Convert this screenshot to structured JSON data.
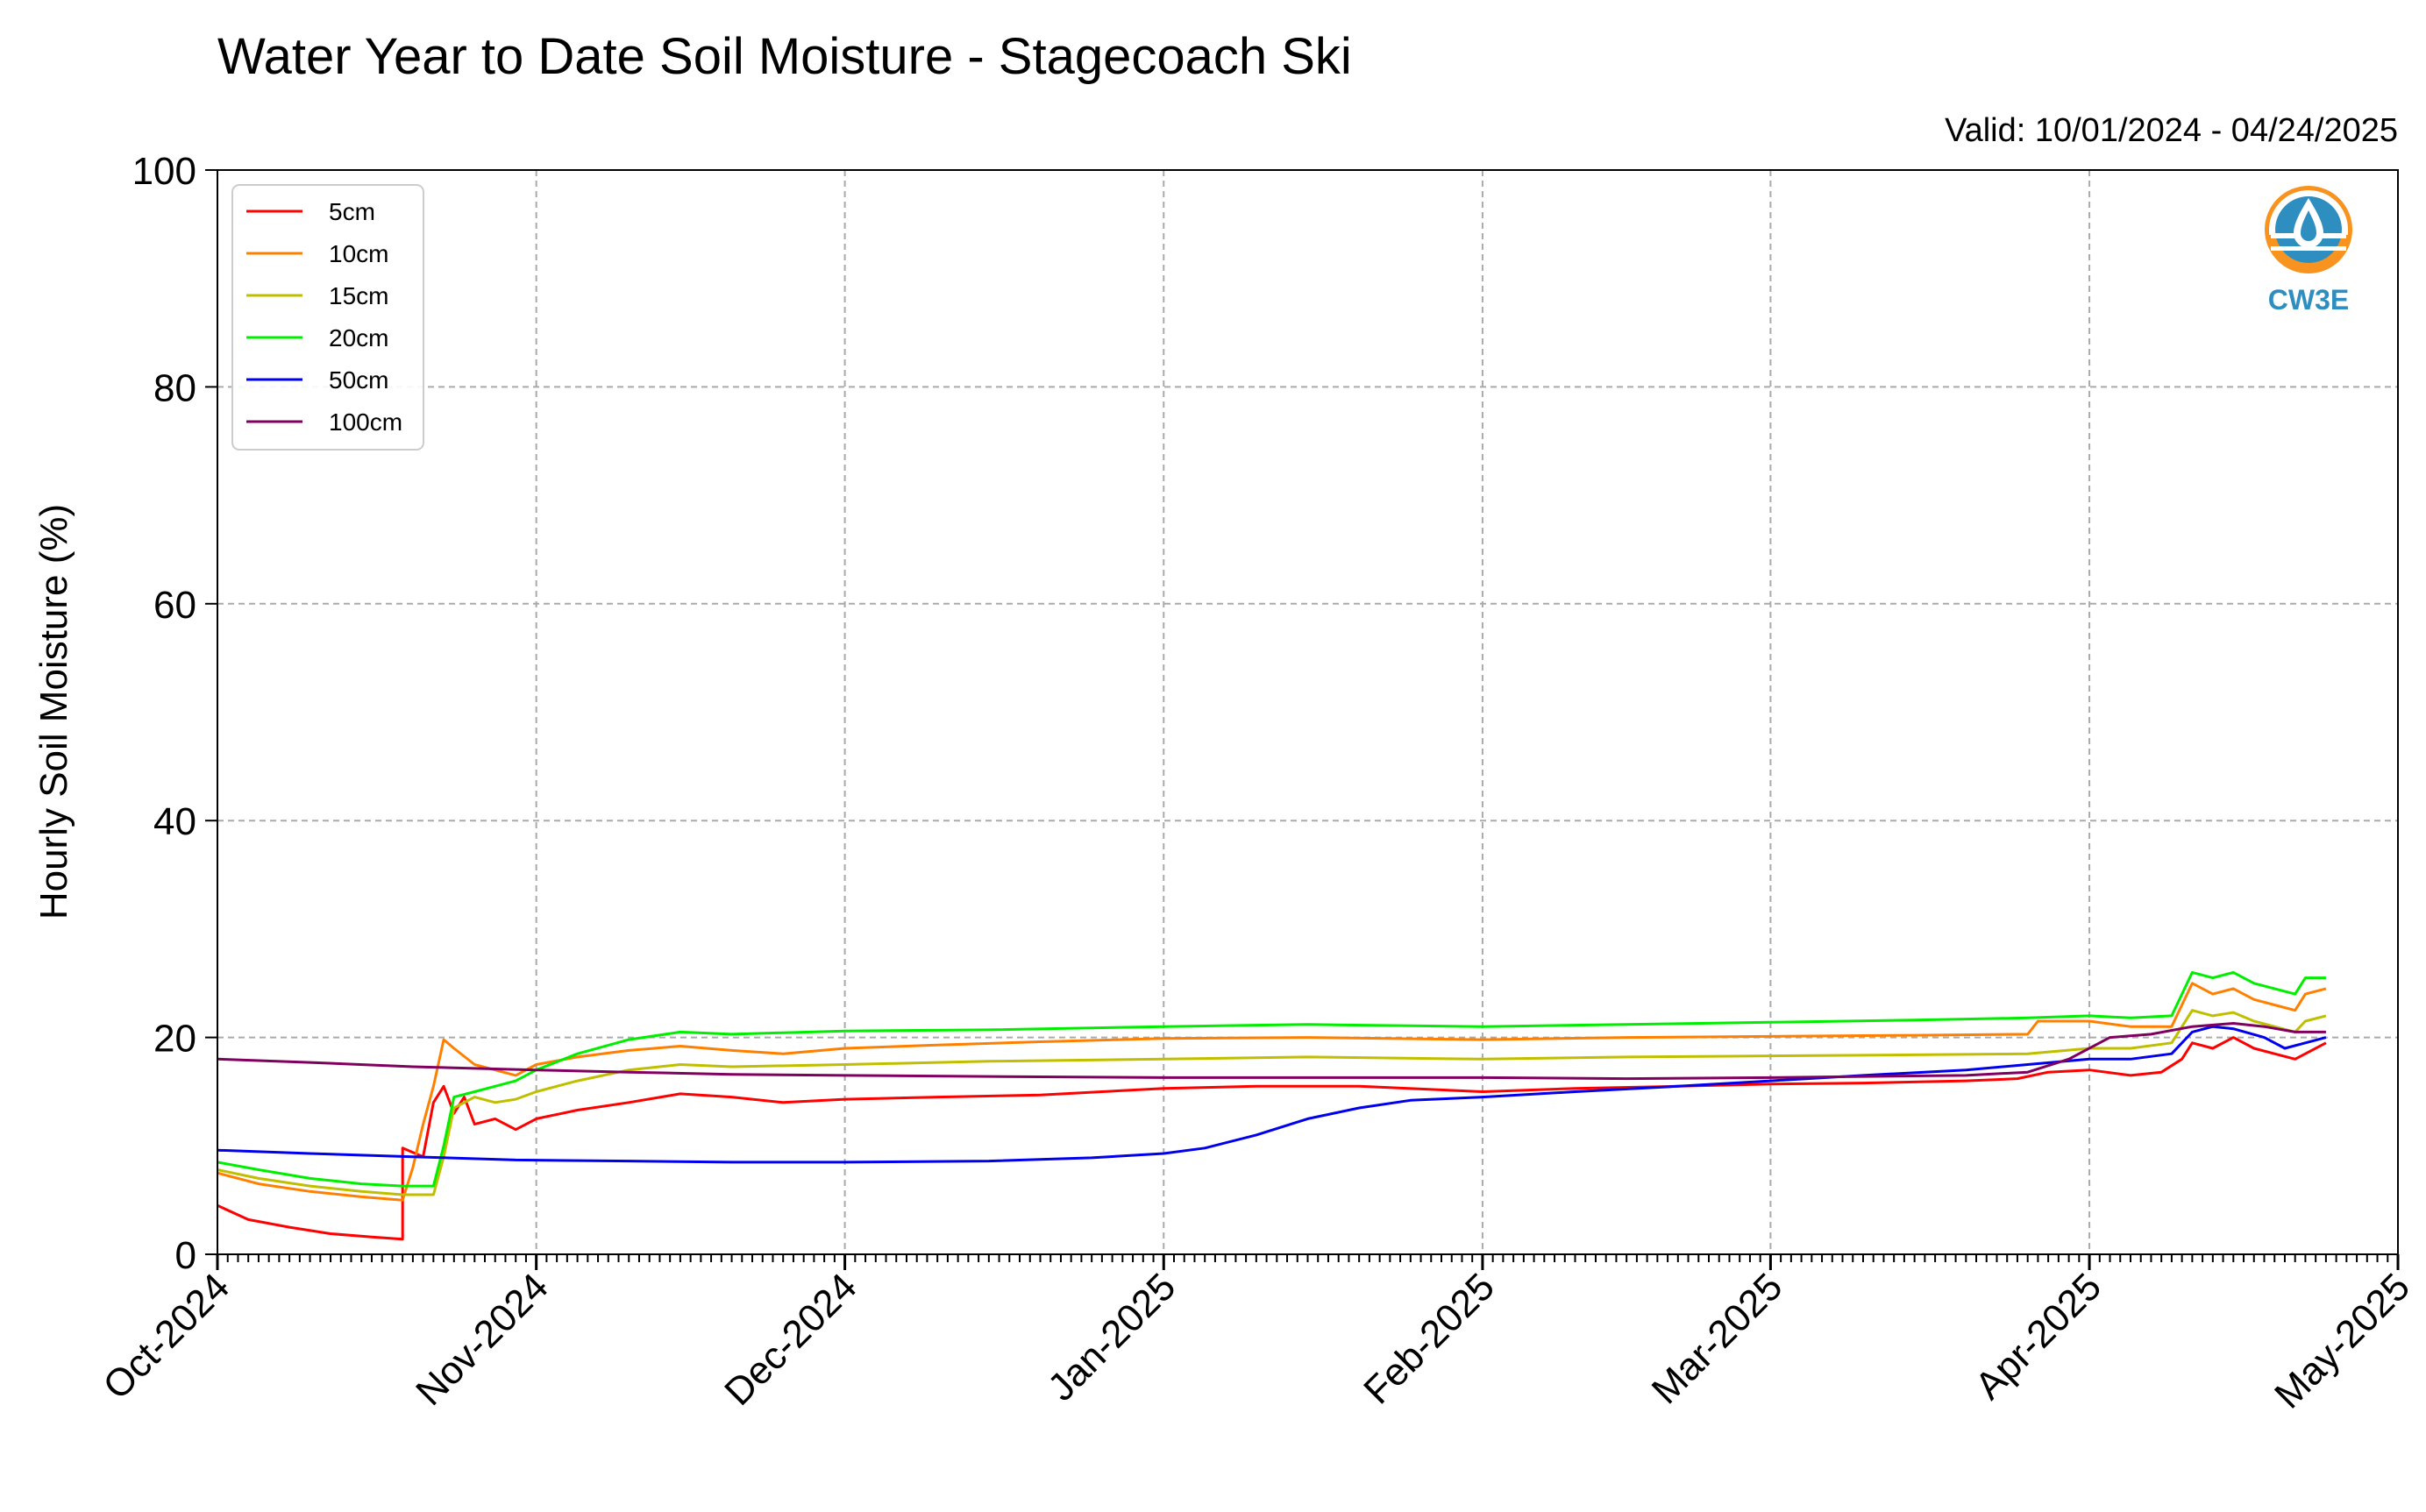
{
  "chart_data": {
    "type": "line",
    "title": "Water Year to Date Soil Moisture - Stagecoach Ski",
    "subtitle": "Valid: 10/01/2024 - 04/24/2025",
    "xlabel": "",
    "ylabel": "Hourly Soil Moisture (%)",
    "xlim": [
      "2024-10-01",
      "2025-05-01"
    ],
    "ylim": [
      0,
      100
    ],
    "y_ticks": [
      0,
      20,
      40,
      60,
      80,
      100
    ],
    "x_ticks": [
      {
        "date": "2024-10-01",
        "label": "Oct-2024"
      },
      {
        "date": "2024-11-01",
        "label": "Nov-2024"
      },
      {
        "date": "2024-12-01",
        "label": "Dec-2024"
      },
      {
        "date": "2025-01-01",
        "label": "Jan-2025"
      },
      {
        "date": "2025-02-01",
        "label": "Feb-2025"
      },
      {
        "date": "2025-03-01",
        "label": "Mar-2025"
      },
      {
        "date": "2025-04-01",
        "label": "Apr-2025"
      },
      {
        "date": "2025-05-01",
        "label": "May-2025"
      }
    ],
    "grid": true,
    "legend_position": "top-left",
    "series": [
      {
        "name": "5cm",
        "color": "#ff0000",
        "points": [
          [
            "2024-10-01",
            4.5
          ],
          [
            "2024-10-04",
            3.2
          ],
          [
            "2024-10-08",
            2.5
          ],
          [
            "2024-10-12",
            1.9
          ],
          [
            "2024-10-16",
            1.6
          ],
          [
            "2024-10-19",
            1.4
          ],
          [
            "2024-10-19",
            9.8
          ],
          [
            "2024-10-21",
            9.0
          ],
          [
            "2024-10-22",
            14.0
          ],
          [
            "2024-10-23",
            15.5
          ],
          [
            "2024-10-24",
            13.0
          ],
          [
            "2024-10-25",
            14.5
          ],
          [
            "2024-10-26",
            12.0
          ],
          [
            "2024-10-28",
            12.5
          ],
          [
            "2024-10-30",
            11.5
          ],
          [
            "2024-11-01",
            12.5
          ],
          [
            "2024-11-05",
            13.3
          ],
          [
            "2024-11-10",
            14.0
          ],
          [
            "2024-11-15",
            14.8
          ],
          [
            "2024-11-20",
            14.5
          ],
          [
            "2024-11-25",
            14.0
          ],
          [
            "2024-12-01",
            14.3
          ],
          [
            "2024-12-10",
            14.5
          ],
          [
            "2024-12-20",
            14.7
          ],
          [
            "2025-01-01",
            15.3
          ],
          [
            "2025-01-10",
            15.5
          ],
          [
            "2025-01-20",
            15.5
          ],
          [
            "2025-02-01",
            15.0
          ],
          [
            "2025-02-10",
            15.3
          ],
          [
            "2025-02-20",
            15.5
          ],
          [
            "2025-03-01",
            15.7
          ],
          [
            "2025-03-10",
            15.8
          ],
          [
            "2025-03-20",
            16.0
          ],
          [
            "2025-03-25",
            16.2
          ],
          [
            "2025-03-28",
            16.8
          ],
          [
            "2025-04-01",
            17.0
          ],
          [
            "2025-04-05",
            16.5
          ],
          [
            "2025-04-08",
            16.8
          ],
          [
            "2025-04-10",
            18.0
          ],
          [
            "2025-04-11",
            19.5
          ],
          [
            "2025-04-13",
            19.0
          ],
          [
            "2025-04-15",
            20.0
          ],
          [
            "2025-04-17",
            19.0
          ],
          [
            "2025-04-19",
            18.5
          ],
          [
            "2025-04-21",
            18.0
          ],
          [
            "2025-04-22",
            18.5
          ],
          [
            "2025-04-24",
            19.5
          ]
        ]
      },
      {
        "name": "10cm",
        "color": "#ff8000",
        "points": [
          [
            "2024-10-01",
            7.5
          ],
          [
            "2024-10-05",
            6.5
          ],
          [
            "2024-10-10",
            5.8
          ],
          [
            "2024-10-15",
            5.3
          ],
          [
            "2024-10-19",
            5.0
          ],
          [
            "2024-10-20",
            8.0
          ],
          [
            "2024-10-21",
            12.0
          ],
          [
            "2024-10-22",
            15.5
          ],
          [
            "2024-10-23",
            19.8
          ],
          [
            "2024-10-24",
            19.0
          ],
          [
            "2024-10-26",
            17.5
          ],
          [
            "2024-10-28",
            17.0
          ],
          [
            "2024-10-30",
            16.5
          ],
          [
            "2024-11-01",
            17.5
          ],
          [
            "2024-11-05",
            18.2
          ],
          [
            "2024-11-10",
            18.8
          ],
          [
            "2024-11-15",
            19.2
          ],
          [
            "2024-11-20",
            18.8
          ],
          [
            "2024-11-25",
            18.5
          ],
          [
            "2024-12-01",
            19.0
          ],
          [
            "2024-12-10",
            19.3
          ],
          [
            "2024-12-20",
            19.6
          ],
          [
            "2025-01-01",
            19.9
          ],
          [
            "2025-01-15",
            20.0
          ],
          [
            "2025-02-01",
            19.8
          ],
          [
            "2025-02-15",
            20.0
          ],
          [
            "2025-03-01",
            20.1
          ],
          [
            "2025-03-15",
            20.2
          ],
          [
            "2025-03-26",
            20.3
          ],
          [
            "2025-03-27",
            21.5
          ],
          [
            "2025-04-01",
            21.5
          ],
          [
            "2025-04-05",
            21.0
          ],
          [
            "2025-04-09",
            21.0
          ],
          [
            "2025-04-11",
            25.0
          ],
          [
            "2025-04-13",
            24.0
          ],
          [
            "2025-04-15",
            24.5
          ],
          [
            "2025-04-17",
            23.5
          ],
          [
            "2025-04-19",
            23.0
          ],
          [
            "2025-04-21",
            22.5
          ],
          [
            "2025-04-22",
            24.0
          ],
          [
            "2025-04-24",
            24.5
          ]
        ]
      },
      {
        "name": "15cm",
        "color": "#bfbf00",
        "points": [
          [
            "2024-10-01",
            7.8
          ],
          [
            "2024-10-05",
            7.0
          ],
          [
            "2024-10-10",
            6.3
          ],
          [
            "2024-10-15",
            5.8
          ],
          [
            "2024-10-19",
            5.5
          ],
          [
            "2024-10-22",
            5.5
          ],
          [
            "2024-10-23",
            9.0
          ],
          [
            "2024-10-24",
            13.5
          ],
          [
            "2024-10-26",
            14.5
          ],
          [
            "2024-10-28",
            14.0
          ],
          [
            "2024-10-30",
            14.3
          ],
          [
            "2024-11-01",
            15.0
          ],
          [
            "2024-11-05",
            16.0
          ],
          [
            "2024-11-10",
            17.0
          ],
          [
            "2024-11-15",
            17.5
          ],
          [
            "2024-11-20",
            17.3
          ],
          [
            "2024-12-01",
            17.5
          ],
          [
            "2024-12-15",
            17.8
          ],
          [
            "2025-01-01",
            18.0
          ],
          [
            "2025-01-15",
            18.2
          ],
          [
            "2025-02-01",
            18.0
          ],
          [
            "2025-02-15",
            18.2
          ],
          [
            "2025-03-01",
            18.3
          ],
          [
            "2025-03-15",
            18.4
          ],
          [
            "2025-03-26",
            18.5
          ],
          [
            "2025-04-01",
            19.0
          ],
          [
            "2025-04-05",
            19.0
          ],
          [
            "2025-04-09",
            19.5
          ],
          [
            "2025-04-11",
            22.5
          ],
          [
            "2025-04-13",
            22.0
          ],
          [
            "2025-04-15",
            22.3
          ],
          [
            "2025-04-17",
            21.5
          ],
          [
            "2025-04-19",
            21.0
          ],
          [
            "2025-04-21",
            20.5
          ],
          [
            "2025-04-22",
            21.5
          ],
          [
            "2025-04-24",
            22.0
          ]
        ]
      },
      {
        "name": "20cm",
        "color": "#00ee00",
        "points": [
          [
            "2024-10-01",
            8.5
          ],
          [
            "2024-10-05",
            7.8
          ],
          [
            "2024-10-10",
            7.0
          ],
          [
            "2024-10-15",
            6.5
          ],
          [
            "2024-10-19",
            6.3
          ],
          [
            "2024-10-22",
            6.3
          ],
          [
            "2024-10-23",
            10.0
          ],
          [
            "2024-10-24",
            14.5
          ],
          [
            "2024-10-26",
            15.0
          ],
          [
            "2024-10-28",
            15.5
          ],
          [
            "2024-10-30",
            16.0
          ],
          [
            "2024-11-01",
            17.0
          ],
          [
            "2024-11-05",
            18.5
          ],
          [
            "2024-11-10",
            19.8
          ],
          [
            "2024-11-15",
            20.5
          ],
          [
            "2024-11-20",
            20.3
          ],
          [
            "2024-12-01",
            20.6
          ],
          [
            "2024-12-15",
            20.7
          ],
          [
            "2025-01-01",
            21.0
          ],
          [
            "2025-01-15",
            21.2
          ],
          [
            "2025-02-01",
            21.0
          ],
          [
            "2025-02-15",
            21.2
          ],
          [
            "2025-03-01",
            21.4
          ],
          [
            "2025-03-15",
            21.6
          ],
          [
            "2025-03-26",
            21.8
          ],
          [
            "2025-04-01",
            22.0
          ],
          [
            "2025-04-05",
            21.8
          ],
          [
            "2025-04-09",
            22.0
          ],
          [
            "2025-04-11",
            26.0
          ],
          [
            "2025-04-13",
            25.5
          ],
          [
            "2025-04-15",
            26.0
          ],
          [
            "2025-04-17",
            25.0
          ],
          [
            "2025-04-19",
            24.5
          ],
          [
            "2025-04-21",
            24.0
          ],
          [
            "2025-04-22",
            25.5
          ],
          [
            "2025-04-24",
            25.5
          ]
        ]
      },
      {
        "name": "50cm",
        "color": "#0000ee",
        "points": [
          [
            "2024-10-01",
            9.6
          ],
          [
            "2024-10-10",
            9.3
          ],
          [
            "2024-10-20",
            9.0
          ],
          [
            "2024-10-30",
            8.7
          ],
          [
            "2024-11-10",
            8.6
          ],
          [
            "2024-11-20",
            8.5
          ],
          [
            "2024-12-01",
            8.5
          ],
          [
            "2024-12-15",
            8.6
          ],
          [
            "2024-12-25",
            8.9
          ],
          [
            "2025-01-01",
            9.3
          ],
          [
            "2025-01-05",
            9.8
          ],
          [
            "2025-01-10",
            11.0
          ],
          [
            "2025-01-15",
            12.5
          ],
          [
            "2025-01-20",
            13.5
          ],
          [
            "2025-01-25",
            14.2
          ],
          [
            "2025-02-01",
            14.5
          ],
          [
            "2025-02-10",
            15.0
          ],
          [
            "2025-02-20",
            15.5
          ],
          [
            "2025-03-01",
            16.0
          ],
          [
            "2025-03-10",
            16.5
          ],
          [
            "2025-03-20",
            17.0
          ],
          [
            "2025-03-26",
            17.5
          ],
          [
            "2025-04-01",
            18.0
          ],
          [
            "2025-04-05",
            18.0
          ],
          [
            "2025-04-09",
            18.5
          ],
          [
            "2025-04-11",
            20.5
          ],
          [
            "2025-04-13",
            21.0
          ],
          [
            "2025-04-15",
            20.8
          ],
          [
            "2025-04-18",
            20.0
          ],
          [
            "2025-04-20",
            19.0
          ],
          [
            "2025-04-22",
            19.5
          ],
          [
            "2025-04-24",
            20.0
          ]
        ]
      },
      {
        "name": "100cm",
        "color": "#800060",
        "points": [
          [
            "2024-10-01",
            18.0
          ],
          [
            "2024-10-10",
            17.7
          ],
          [
            "2024-10-20",
            17.3
          ],
          [
            "2024-11-01",
            17.0
          ],
          [
            "2024-11-10",
            16.8
          ],
          [
            "2024-11-20",
            16.6
          ],
          [
            "2024-12-01",
            16.5
          ],
          [
            "2024-12-15",
            16.4
          ],
          [
            "2025-01-01",
            16.3
          ],
          [
            "2025-01-15",
            16.3
          ],
          [
            "2025-02-01",
            16.3
          ],
          [
            "2025-02-15",
            16.2
          ],
          [
            "2025-03-01",
            16.3
          ],
          [
            "2025-03-10",
            16.4
          ],
          [
            "2025-03-20",
            16.5
          ],
          [
            "2025-03-26",
            16.8
          ],
          [
            "2025-03-30",
            18.0
          ],
          [
            "2025-04-03",
            20.0
          ],
          [
            "2025-04-07",
            20.3
          ],
          [
            "2025-04-11",
            21.0
          ],
          [
            "2025-04-15",
            21.3
          ],
          [
            "2025-04-18",
            21.0
          ],
          [
            "2025-04-21",
            20.5
          ],
          [
            "2025-04-24",
            20.5
          ]
        ]
      }
    ]
  },
  "logo": {
    "text": "CW3E",
    "icon": "water-drop-sun-logo-icon",
    "colors": {
      "sun": "#f7931e",
      "water": "#2e8ec0"
    }
  }
}
